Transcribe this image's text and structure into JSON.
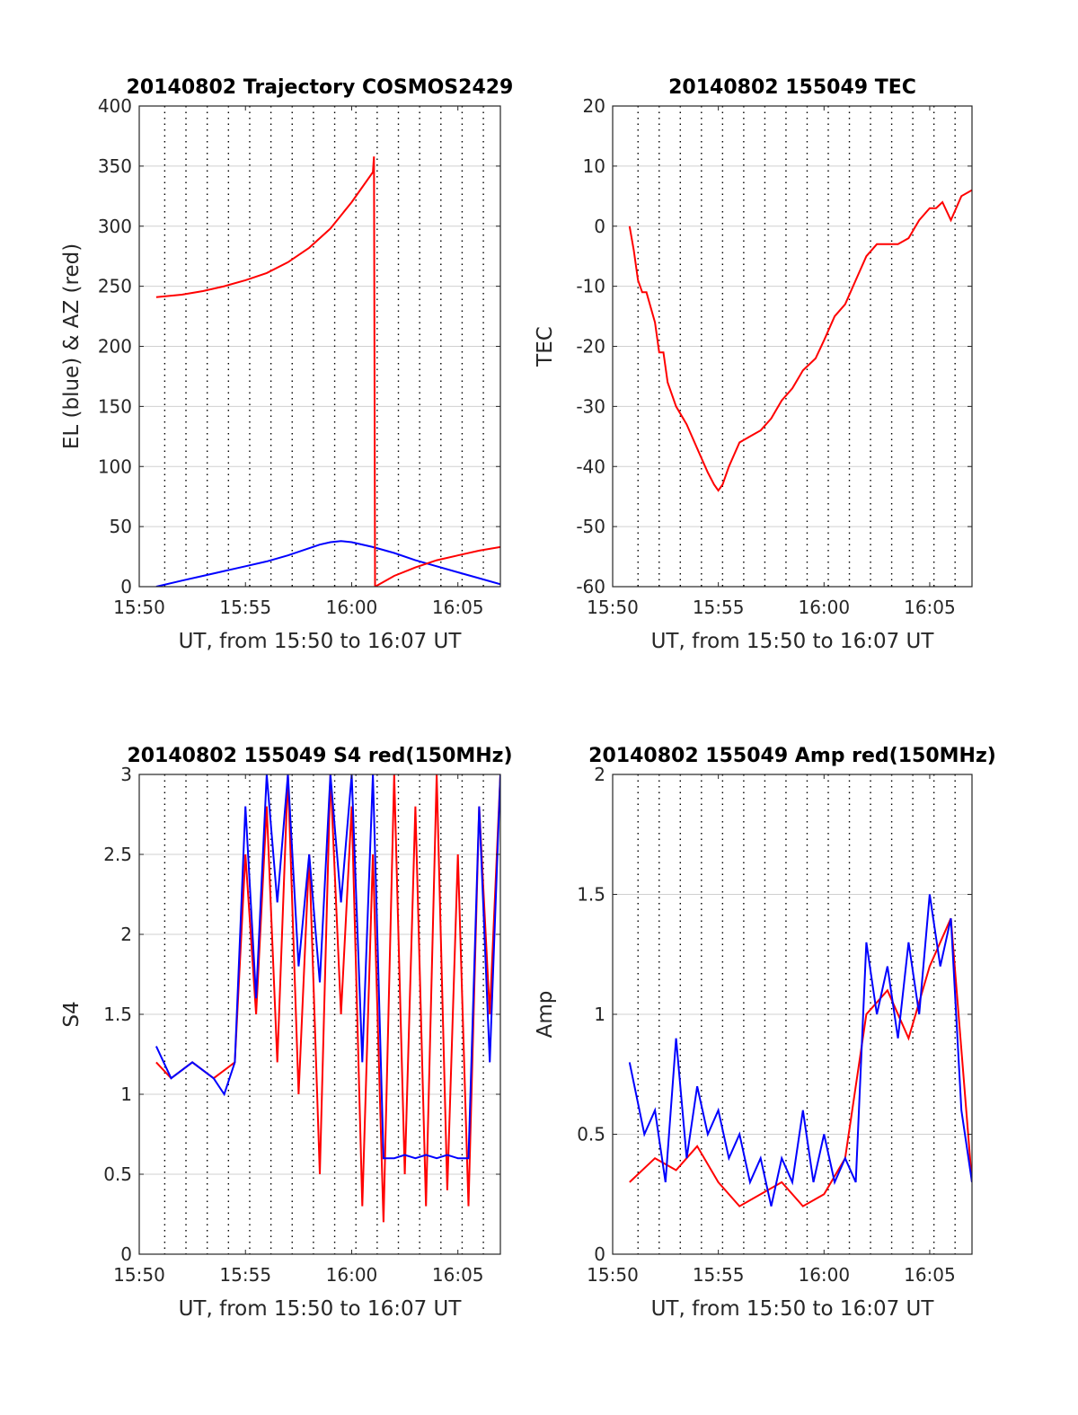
{
  "colors": {
    "el": "#0000ff",
    "az": "#ff0000",
    "tec": "#ff0000",
    "s4_red": "#ff0000",
    "s4_blue": "#0000ff",
    "amp_red": "#ff0000",
    "amp_blue": "#0000ff",
    "grid": "#d0d0d0",
    "vgrid": "#000000"
  },
  "chart_data": [
    {
      "type": "line",
      "title": "20140802 Trajectory COSMOS2429",
      "xlabel": "UT, from 15:50 to 16:07 UT",
      "ylabel": "EL (blue) & AZ (red)",
      "xlim": [
        0,
        17
      ],
      "ylim": [
        0,
        400
      ],
      "xticks": [
        0,
        5,
        10,
        15
      ],
      "xtick_labels": [
        "15:50",
        "15:55",
        "16:00",
        "16:05"
      ],
      "yticks": [
        0,
        50,
        100,
        150,
        200,
        250,
        300,
        350,
        400
      ],
      "ytick_labels": [
        "0",
        "50",
        "100",
        "150",
        "200",
        "250",
        "300",
        "350",
        "400"
      ],
      "vlines": [
        1.2,
        2.2,
        3.2,
        4.2,
        5.2,
        6.2,
        7.2,
        8.2,
        9.2,
        10.2,
        11.2,
        12.2,
        13.2,
        14.2,
        15.2,
        16.2
      ],
      "grid": true,
      "series": [
        {
          "name": "EL (blue)",
          "color": "#0000ff",
          "x": [
            0.8,
            2,
            3,
            4,
            5,
            6,
            7,
            8,
            8.5,
            9,
            9.5,
            10,
            11,
            12,
            13,
            14,
            15,
            16,
            17
          ],
          "y": [
            0,
            5,
            9,
            13,
            17,
            21,
            26,
            32,
            35,
            37,
            38,
            37,
            33,
            28,
            22,
            17,
            12,
            7,
            2
          ]
        },
        {
          "name": "AZ (red)",
          "color": "#ff0000",
          "x": [
            0.8,
            2,
            3,
            4,
            5,
            6,
            7,
            8,
            9,
            10,
            11,
            11.05,
            11.1,
            12,
            13,
            14,
            15,
            16,
            17
          ],
          "y": [
            241,
            243,
            246,
            250,
            255,
            261,
            270,
            282,
            298,
            320,
            345,
            358,
            0,
            9,
            16,
            22,
            26,
            30,
            33
          ]
        }
      ]
    },
    {
      "type": "line",
      "title": "20140802 155049 TEC",
      "xlabel": "UT, from 15:50 to 16:07 UT",
      "ylabel": "TEC",
      "xlim": [
        0,
        17
      ],
      "ylim": [
        -60,
        20
      ],
      "xticks": [
        0,
        5,
        10,
        15
      ],
      "xtick_labels": [
        "15:50",
        "15:55",
        "16:00",
        "16:05"
      ],
      "yticks": [
        -60,
        -50,
        -40,
        -30,
        -20,
        -10,
        0,
        10,
        20
      ],
      "ytick_labels": [
        "-60",
        "-50",
        "-40",
        "-30",
        "-20",
        "-10",
        "0",
        "10",
        "20"
      ],
      "vlines": [
        1.2,
        2.2,
        3.2,
        4.2,
        5.2,
        6.2,
        7.2,
        8.2,
        9.2,
        10.2,
        11.2,
        12.2,
        13.2,
        14.2,
        15.2,
        16.2
      ],
      "grid": true,
      "series": [
        {
          "name": "TEC",
          "color": "#ff0000",
          "x": [
            0.8,
            1.0,
            1.2,
            1.4,
            1.6,
            2.0,
            2.2,
            2.4,
            2.6,
            3.0,
            3.5,
            4.0,
            4.5,
            4.8,
            5.0,
            5.2,
            5.5,
            6.0,
            6.5,
            7.0,
            7.5,
            8.0,
            8.5,
            9.0,
            9.3,
            9.6,
            10.0,
            10.5,
            11.0,
            11.5,
            12.0,
            12.5,
            13.0,
            13.5,
            14.0,
            14.5,
            15.0,
            15.3,
            15.6,
            16.0,
            16.5,
            17.0
          ],
          "y": [
            0,
            -4,
            -9,
            -11,
            -11,
            -16,
            -21,
            -21,
            -26,
            -30,
            -33,
            -37,
            -41,
            -43,
            -44,
            -43,
            -40,
            -36,
            -35,
            -34,
            -32,
            -29,
            -27,
            -24,
            -23,
            -22,
            -19,
            -15,
            -13,
            -9,
            -5,
            -3,
            -3,
            -3,
            -2,
            1,
            3,
            3,
            4,
            1,
            5,
            6
          ]
        }
      ]
    },
    {
      "type": "line",
      "title": "20140802 155049 S4 red(150MHz)",
      "xlabel": "UT, from 15:50 to 16:07 UT",
      "ylabel": "S4",
      "xlim": [
        0,
        17
      ],
      "ylim": [
        0,
        3
      ],
      "xticks": [
        0,
        5,
        10,
        15
      ],
      "xtick_labels": [
        "15:50",
        "15:55",
        "16:00",
        "16:05"
      ],
      "yticks": [
        0,
        0.5,
        1,
        1.5,
        2,
        2.5,
        3
      ],
      "ytick_labels": [
        "0",
        "0.5",
        "1",
        "1.5",
        "2",
        "2.5",
        "3"
      ],
      "vlines": [
        1.2,
        2.2,
        3.2,
        4.2,
        5.2,
        6.2,
        7.2,
        8.2,
        9.2,
        10.2,
        11.2,
        12.2,
        13.2,
        14.2,
        15.2,
        16.2
      ],
      "grid": true,
      "series": [
        {
          "name": "red",
          "color": "#ff0000",
          "x": [
            0.8,
            1.5,
            2.5,
            3.5,
            4.5,
            5.0,
            5.5,
            6.0,
            6.5,
            7.0,
            7.5,
            8.0,
            8.5,
            9.0,
            9.5,
            10.0,
            10.5,
            11.0,
            11.5,
            12.0,
            12.5,
            13.0,
            13.5,
            14.0,
            14.5,
            15.0,
            15.5,
            16.0,
            16.5,
            17.0
          ],
          "y": [
            1.2,
            1.1,
            1.2,
            1.1,
            1.2,
            2.5,
            1.5,
            2.8,
            1.2,
            3,
            1,
            2.5,
            0.5,
            3,
            1.5,
            2.8,
            0.3,
            2.5,
            0.2,
            3,
            0.5,
            2.8,
            0.3,
            3,
            0.4,
            2.5,
            0.3,
            2.8,
            1.5,
            3
          ]
        },
        {
          "name": "blue",
          "color": "#0000ff",
          "x": [
            0.8,
            1.5,
            2.5,
            3.5,
            4.0,
            4.5,
            5.0,
            5.5,
            6.0,
            6.5,
            7.0,
            7.5,
            8.0,
            8.5,
            9.0,
            9.5,
            10.0,
            10.5,
            11.0,
            11.5,
            12.0,
            12.5,
            13.0,
            13.5,
            14.0,
            14.5,
            15.0,
            15.5,
            16.0,
            16.5,
            17.0
          ],
          "y": [
            1.3,
            1.1,
            1.2,
            1.1,
            1.0,
            1.2,
            2.8,
            1.6,
            3,
            2.2,
            3,
            1.8,
            2.5,
            1.7,
            3,
            2.2,
            3,
            1.2,
            3,
            0.6,
            0.6,
            0.62,
            0.6,
            0.62,
            0.6,
            0.62,
            0.6,
            0.6,
            2.8,
            1.2,
            3
          ]
        }
      ]
    },
    {
      "type": "line",
      "title": "20140802 155049 Amp red(150MHz)",
      "xlabel": "UT, from 15:50 to 16:07 UT",
      "ylabel": "Amp",
      "xlim": [
        0,
        17
      ],
      "ylim": [
        0,
        2
      ],
      "xticks": [
        0,
        5,
        10,
        15
      ],
      "xtick_labels": [
        "15:50",
        "15:55",
        "16:00",
        "16:05"
      ],
      "yticks": [
        0,
        0.5,
        1,
        1.5,
        2
      ],
      "ytick_labels": [
        "0",
        "0.5",
        "1",
        "1.5",
        "2"
      ],
      "vlines": [
        1.2,
        2.2,
        3.2,
        4.2,
        5.2,
        6.2,
        7.2,
        8.2,
        9.2,
        10.2,
        11.2,
        12.2,
        13.2,
        14.2,
        15.2,
        16.2
      ],
      "grid": true,
      "series": [
        {
          "name": "red",
          "color": "#ff0000",
          "x": [
            0.8,
            2,
            3,
            4,
            5,
            6,
            7,
            8,
            9,
            10,
            11,
            12,
            13,
            14,
            15,
            16,
            17
          ],
          "y": [
            0.3,
            0.4,
            0.35,
            0.45,
            0.3,
            0.2,
            0.25,
            0.3,
            0.2,
            0.25,
            0.4,
            1.0,
            1.1,
            0.9,
            1.2,
            1.4,
            0.3
          ]
        },
        {
          "name": "blue",
          "color": "#0000ff",
          "x": [
            0.8,
            1.5,
            2.0,
            2.5,
            3.0,
            3.5,
            4.0,
            4.5,
            5.0,
            5.5,
            6.0,
            6.5,
            7.0,
            7.5,
            8.0,
            8.5,
            9.0,
            9.5,
            10.0,
            10.5,
            11.0,
            11.5,
            12.0,
            12.5,
            13.0,
            13.5,
            14.0,
            14.5,
            15.0,
            15.5,
            16.0,
            16.5,
            17.0
          ],
          "y": [
            0.8,
            0.5,
            0.6,
            0.3,
            0.9,
            0.4,
            0.7,
            0.5,
            0.6,
            0.4,
            0.5,
            0.3,
            0.4,
            0.2,
            0.4,
            0.3,
            0.6,
            0.3,
            0.5,
            0.3,
            0.4,
            0.3,
            1.3,
            1.0,
            1.2,
            0.9,
            1.3,
            1.0,
            1.5,
            1.2,
            1.4,
            0.6,
            0.3
          ]
        }
      ]
    }
  ]
}
